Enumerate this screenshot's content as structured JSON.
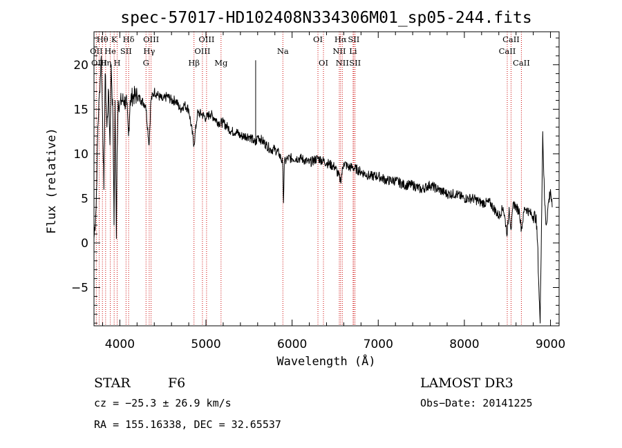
{
  "chart_data": {
    "type": "line",
    "title": "spec-57017-HD102408N334306M01_sp05-244.fits",
    "xlabel": "Wavelength (Å)",
    "ylabel": "Flux (relative)",
    "xlim": [
      3700,
      9100
    ],
    "ylim": [
      -9.3,
      23.7
    ],
    "xticks": [
      4000,
      5000,
      6000,
      7000,
      8000,
      9000
    ],
    "xtick_labels": [
      "4000",
      "5000",
      "6000",
      "7000",
      "8000",
      "9000"
    ],
    "yticks": [
      -5,
      0,
      5,
      10,
      15,
      20
    ],
    "ytick_labels": [
      "−5",
      "0",
      "5",
      "10",
      "15",
      "20"
    ],
    "series": [
      {
        "name": "flux",
        "x": [
          3700,
          3725,
          3745,
          3765,
          3785,
          3800,
          3815,
          3830,
          3850,
          3870,
          3885,
          3900,
          3920,
          3933,
          3945,
          3960,
          3968,
          3980,
          4000,
          4020,
          4050,
          4080,
          4101,
          4120,
          4150,
          4200,
          4250,
          4300,
          4340,
          4360,
          4400,
          4450,
          4500,
          4550,
          4600,
          4650,
          4700,
          4750,
          4800,
          4861,
          4900,
          4950,
          5000,
          5050,
          5100,
          5150,
          5200,
          5250,
          5300,
          5350,
          5400,
          5450,
          5500,
          5550,
          5577,
          5600,
          5650,
          5700,
          5750,
          5800,
          5850,
          5890,
          5900,
          5910,
          5950,
          6000,
          6100,
          6200,
          6300,
          6400,
          6500,
          6563,
          6600,
          6650,
          6700,
          6800,
          6900,
          7000,
          7100,
          7200,
          7300,
          7400,
          7500,
          7600,
          7700,
          7800,
          7900,
          8000,
          8100,
          8200,
          8300,
          8400,
          8450,
          8498,
          8520,
          8542,
          8570,
          8600,
          8640,
          8662,
          8700,
          8750,
          8800,
          8830,
          8850,
          8865,
          8880,
          8895,
          8910,
          8930,
          8950,
          8970,
          9000,
          9020
        ],
        "values": [
          0.5,
          4,
          13,
          17,
          21,
          14,
          6,
          19,
          13,
          17,
          11,
          20,
          14,
          2,
          16,
          0.5,
          10,
          16,
          15.5,
          16,
          16,
          15.5,
          12,
          16,
          16.5,
          16.5,
          16,
          15.5,
          11,
          16,
          17,
          16.5,
          16,
          16.5,
          16,
          16,
          15,
          15.5,
          15,
          11,
          14.5,
          14.5,
          14,
          14.5,
          14,
          13.5,
          13.5,
          13,
          12.5,
          12.5,
          12,
          12,
          12,
          11.5,
          11,
          12,
          11.5,
          11,
          10.5,
          10.5,
          10,
          9,
          4.5,
          9,
          9.5,
          9.5,
          9.5,
          9,
          9.5,
          9,
          8.5,
          7,
          9,
          8.5,
          8.5,
          8,
          7.5,
          7.5,
          7,
          7,
          6.5,
          6.5,
          6,
          6.5,
          6,
          5.5,
          5.5,
          5,
          5,
          4.5,
          4.5,
          3,
          4,
          1,
          4,
          1.5,
          4.5,
          4,
          3.5,
          1.5,
          4,
          3.5,
          3,
          3,
          0,
          -5,
          -9,
          2,
          12.5,
          5,
          2,
          4,
          6,
          4
        ]
      }
    ],
    "spikes": [
      {
        "x": 5577,
        "y": 20.5
      }
    ],
    "line_markers": [
      {
        "label": "Hθ",
        "wavelength": 3798,
        "row": 1
      },
      {
        "label": "OII",
        "wavelength": 3727,
        "row": 2
      },
      {
        "label": "OIII",
        "wavelength": 3760,
        "row": 3
      },
      {
        "label": "He",
        "wavelength": 3889,
        "row": 2
      },
      {
        "label": "Hη",
        "wavelength": 3835,
        "row": 3
      },
      {
        "label": "K",
        "wavelength": 3934,
        "row": 1
      },
      {
        "label": "SII",
        "wavelength": 4072,
        "row": 2
      },
      {
        "label": "H",
        "wavelength": 3969,
        "row": 3
      },
      {
        "label": "Hδ",
        "wavelength": 4102,
        "row": 1
      },
      {
        "label": "OIII",
        "wavelength": 4363,
        "row": 1
      },
      {
        "label": "Hγ",
        "wavelength": 4341,
        "row": 2
      },
      {
        "label": "G",
        "wavelength": 4304,
        "row": 3
      },
      {
        "label": "OIII",
        "wavelength": 5007,
        "row": 1
      },
      {
        "label": "OIII",
        "wavelength": 4959,
        "row": 2
      },
      {
        "label": "Hβ",
        "wavelength": 4861,
        "row": 3
      },
      {
        "label": "Mg",
        "wavelength": 5175,
        "row": 3
      },
      {
        "label": "Na",
        "wavelength": 5893,
        "row": 2
      },
      {
        "label": "OI",
        "wavelength": 6300,
        "row": 1
      },
      {
        "label": "OI",
        "wavelength": 6364,
        "row": 3
      },
      {
        "label": "Hα",
        "wavelength": 6563,
        "row": 1
      },
      {
        "label": "SII",
        "wavelength": 6716,
        "row": 1
      },
      {
        "label": "NII",
        "wavelength": 6548,
        "row": 2
      },
      {
        "label": "Li",
        "wavelength": 6708,
        "row": 2
      },
      {
        "label": "NII",
        "wavelength": 6583,
        "row": 3
      },
      {
        "label": "SII",
        "wavelength": 6731,
        "row": 3
      },
      {
        "label": "CaII",
        "wavelength": 8542,
        "row": 1
      },
      {
        "label": "CaII",
        "wavelength": 8498,
        "row": 2
      },
      {
        "label": "CaII",
        "wavelength": 8662,
        "row": 3
      }
    ],
    "colors": {
      "spectrum": "#000000",
      "marker_lines": "#cc0000",
      "axes": "#000000"
    }
  },
  "info": {
    "class_label": "STAR",
    "subclass": "F6",
    "redshift_text": "cz = −25.3 ± 26.9 km/s",
    "coords_text": "RA = 155.16338, DEC =  32.65537",
    "survey": "LAMOST DR3",
    "obs_date_text": "Obs−Date: 20141225"
  }
}
